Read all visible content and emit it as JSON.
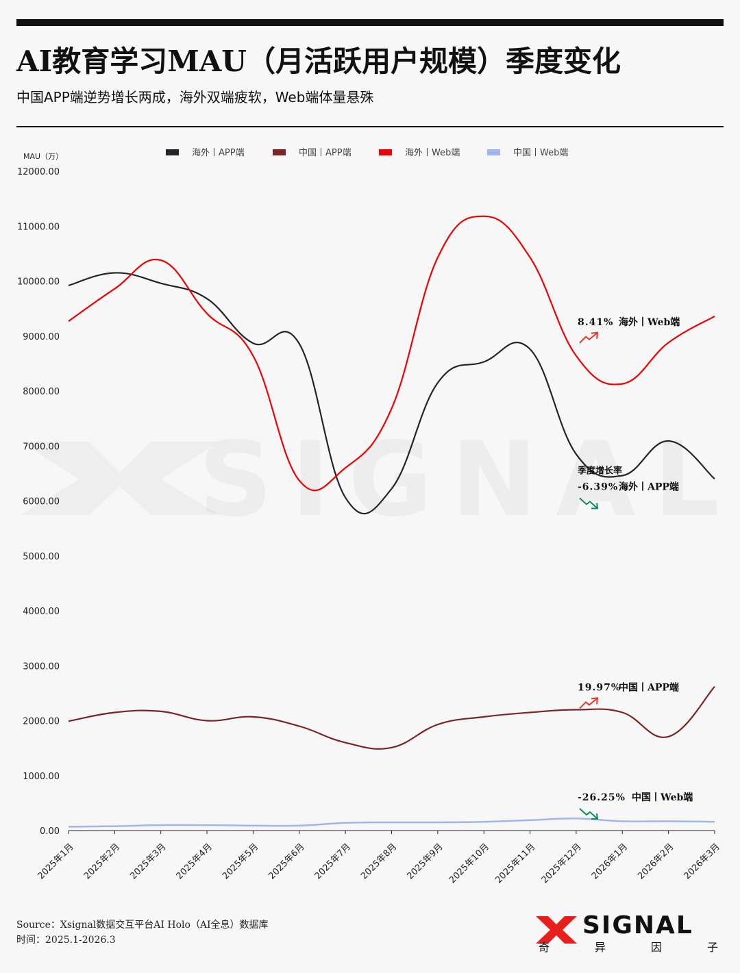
{
  "header": {
    "title": "AI教育学习MAU（月活跃用户规模）季度变化",
    "subtitle": "中国APP端逆势增长两成，海外双端疲软，Web端体量悬殊"
  },
  "footer": {
    "source": "Source：Xsignal数据交互平台AI Holo（AI全息）数据库",
    "time": "时间：2025.1-2026.3",
    "logo_text": "SIGNAL",
    "logo_sub": [
      "奇",
      "异",
      "因",
      "子"
    ]
  },
  "chart_data": {
    "type": "line",
    "ylabel": "MAU（万）",
    "ylim": [
      0,
      12000
    ],
    "yticks": [
      "0.00",
      "1000.00",
      "2000.00",
      "3000.00",
      "4000.00",
      "5000.00",
      "6000.00",
      "7000.00",
      "8000.00",
      "9000.00",
      "10000.00",
      "11000.00",
      "12000.00"
    ],
    "legend_position": "top",
    "categories": [
      "2025年1月",
      "2025年2月",
      "2025年3月",
      "2025年4月",
      "2025年5月",
      "2025年6月",
      "2025年7月",
      "2025年8月",
      "2025年9月",
      "2025年10月",
      "2025年11月",
      "2025年12月",
      "2026年1月",
      "2026年2月",
      "2026年3月"
    ],
    "series": [
      {
        "name": "海外丨APP端",
        "color": "#23252b",
        "values": [
          9920,
          10150,
          9960,
          9680,
          8870,
          8860,
          6060,
          6220,
          8150,
          8530,
          8760,
          6850,
          6460,
          7090,
          6400
        ]
      },
      {
        "name": "中国丨APP端",
        "color": "#7b2424",
        "values": [
          1990,
          2150,
          2170,
          2000,
          2070,
          1900,
          1600,
          1510,
          1930,
          2070,
          2150,
          2200,
          2150,
          1710,
          2620
        ]
      },
      {
        "name": "海外丨Web端",
        "color": "#f00000",
        "values": [
          9270,
          9860,
          10380,
          9410,
          8640,
          6370,
          6600,
          7680,
          10430,
          11180,
          10430,
          8640,
          8130,
          8880,
          9360
        ]
      },
      {
        "name": "中国丨Web端",
        "color": "#9fb6ec",
        "values": [
          70,
          80,
          100,
          100,
          90,
          90,
          140,
          150,
          150,
          160,
          190,
          220,
          170,
          170,
          160
        ]
      }
    ],
    "annotations": [
      {
        "header": "",
        "value": "8.41%",
        "label": "海外丨Web端",
        "direction": "up",
        "color": "#e8352f",
        "at_value": 9000
      },
      {
        "header": "季度增长率",
        "value": "-6.39%",
        "label": "海外丨APP端",
        "direction": "down",
        "color": "#0e8a5a",
        "at_value": 6000
      },
      {
        "header": "",
        "value": "19.97%",
        "label": "中国丨APP端",
        "direction": "up",
        "color": "#e8352f",
        "at_value": 2350
      },
      {
        "header": "",
        "value": "-26.25%",
        "label": "中国丨Web端",
        "direction": "down",
        "color": "#0e8a5a",
        "at_value": 350
      }
    ],
    "watermark": "SIGNAL"
  }
}
